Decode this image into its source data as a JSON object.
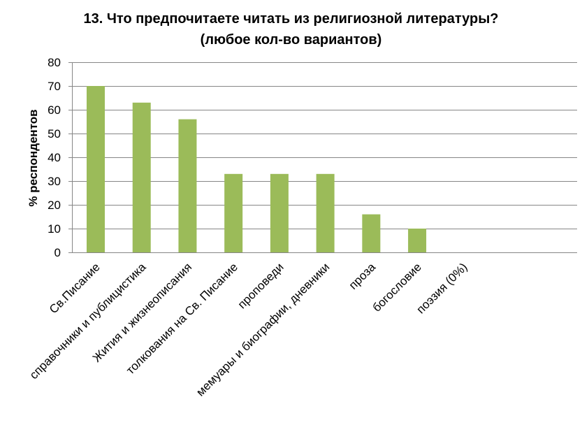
{
  "chart_data": {
    "type": "bar",
    "title": "13. Что предпочитаете читать из религиозной литературы?",
    "subtitle": "(любое кол-во вариантов)",
    "xlabel": "",
    "ylabel": "% респондентов",
    "ylim": [
      0,
      80
    ],
    "yticks": [
      0,
      10,
      20,
      30,
      40,
      50,
      60,
      70,
      80
    ],
    "grid": true,
    "categories": [
      "Св.Писание",
      "справочники и публицистика",
      "Жития и жизнеописания",
      "толкования на Св. Писание",
      "проповеди",
      "мемуары и биографии, дневники",
      "проза",
      "богословие",
      "поэзия (0%)"
    ],
    "values": [
      70,
      63,
      56,
      33,
      33,
      33,
      16,
      10,
      0
    ],
    "bar_color": "#9BBB59",
    "gridline_color": "#868686",
    "axis_color": "#868686"
  }
}
